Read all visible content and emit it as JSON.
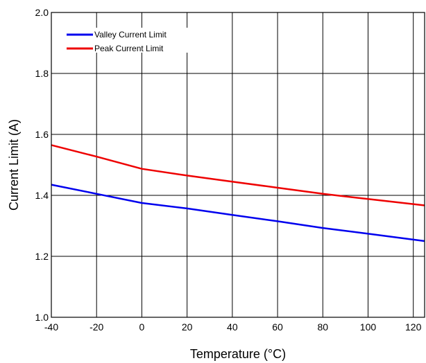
{
  "chart_data": {
    "type": "line",
    "xlabel": "Temperature (°C)",
    "ylabel": "Current Limit (A)",
    "xlim": [
      -40,
      125
    ],
    "ylim": [
      1.0,
      2.0
    ],
    "xticks": [
      -40,
      -20,
      0,
      20,
      40,
      60,
      80,
      100,
      120
    ],
    "xtick_labels": [
      "-40",
      "-20",
      "0",
      "20",
      "40",
      "60",
      "80",
      "100",
      "120"
    ],
    "yticks": [
      1.0,
      1.2,
      1.4,
      1.6,
      1.8,
      2.0
    ],
    "ytick_labels": [
      "1.0",
      "1.2",
      "1.4",
      "1.6",
      "1.8",
      "2.0"
    ],
    "grid": true,
    "legend_position": "top-left",
    "series": [
      {
        "name": "Valley Current Limit",
        "color": "#0000ee",
        "x": [
          -40,
          -20,
          0,
          20,
          40,
          60,
          80,
          100,
          125
        ],
        "y": [
          1.435,
          1.405,
          1.375,
          1.357,
          1.336,
          1.315,
          1.293,
          1.274,
          1.25
        ]
      },
      {
        "name": "Peak Current Limit",
        "color": "#ee0000",
        "x": [
          -40,
          -20,
          0,
          20,
          40,
          60,
          80,
          100,
          125
        ],
        "y": [
          1.565,
          1.527,
          1.487,
          1.465,
          1.445,
          1.425,
          1.405,
          1.388,
          1.367
        ]
      }
    ]
  }
}
